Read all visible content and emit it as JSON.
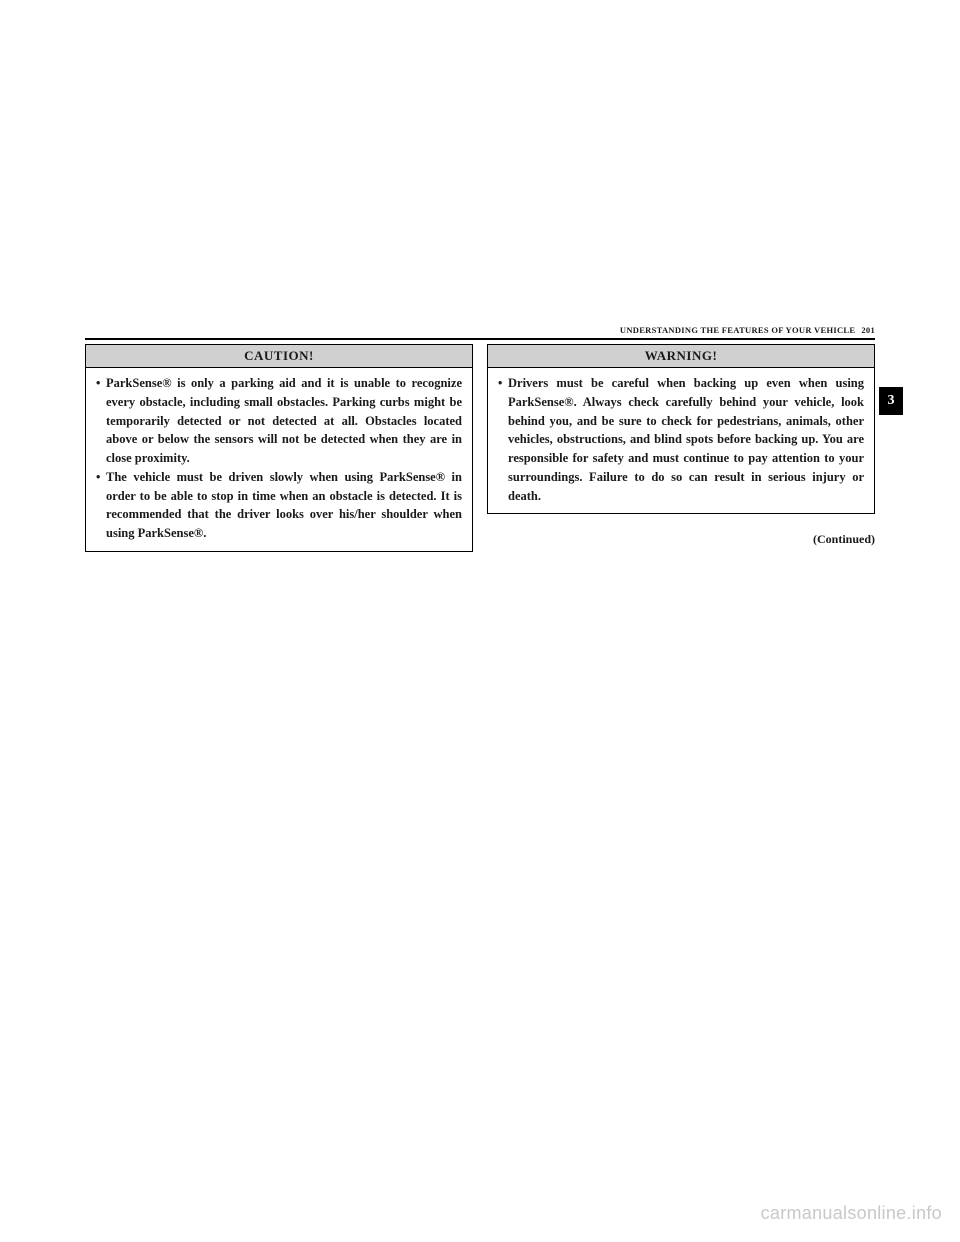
{
  "header": {
    "section_title": "UNDERSTANDING THE FEATURES OF YOUR VEHICLE",
    "page_number": "201"
  },
  "section_tab": "3",
  "caution": {
    "title": "CAUTION!",
    "items": [
      "ParkSense® is only a parking aid and it is unable to recognize every obstacle, including small obstacles. Parking curbs might be temporarily detected or not detected at all. Obstacles located above or below the sensors will not be detected when they are in close proximity.",
      "The vehicle must be driven slowly when using ParkSense® in order to be able to stop in time when an obstacle is detected. It is recommended that the driver looks over his/her shoulder when using ParkSense®."
    ]
  },
  "warning": {
    "title": "WARNING!",
    "items": [
      "Drivers must be careful when backing up even when using ParkSense®. Always check carefully behind your vehicle, look behind you, and be sure to check for pedestrians, animals, other vehicles, obstructions, and blind spots before backing up. You are responsible for safety and must continue to pay attention to your surroundings. Failure to do so can result in serious injury or death."
    ]
  },
  "continued_label": "(Continued)",
  "watermark": "carmanualsonline.info",
  "colors": {
    "page_bg": "#ffffff",
    "text": "#1a1a1a",
    "header_bg": "#d0d0d0",
    "border": "#000000",
    "tab_bg": "#000000",
    "tab_text": "#ffffff",
    "watermark": "#c8c8c8"
  }
}
